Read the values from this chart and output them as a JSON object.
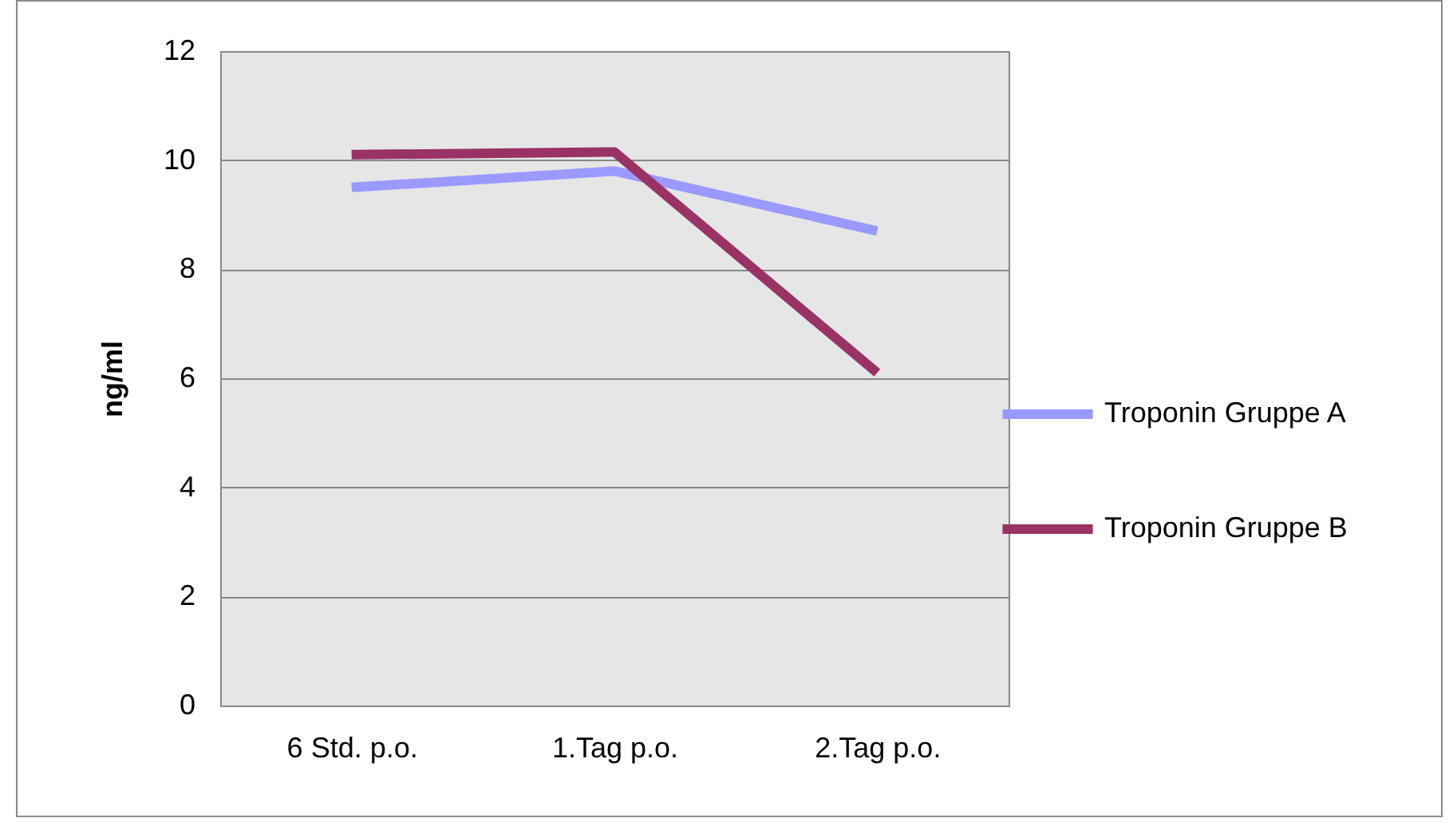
{
  "chart_data": {
    "type": "line",
    "ylabel": "ng/ml",
    "categories": [
      "6 Std. p.o.",
      "1.Tag p.o.",
      "2.Tag p.o."
    ],
    "series": [
      {
        "name": "Troponin Gruppe A",
        "color": "#9999ff",
        "values": [
          9.5,
          9.8,
          8.7
        ]
      },
      {
        "name": "Troponin Gruppe B",
        "color": "#993366",
        "values": [
          10.1,
          10.15,
          6.1
        ]
      }
    ],
    "ylim": [
      0,
      12
    ],
    "yticks": [
      0,
      2,
      4,
      6,
      8,
      10,
      12
    ],
    "grid": "y",
    "legend": "right",
    "marker": "none",
    "line_style": "solid"
  }
}
